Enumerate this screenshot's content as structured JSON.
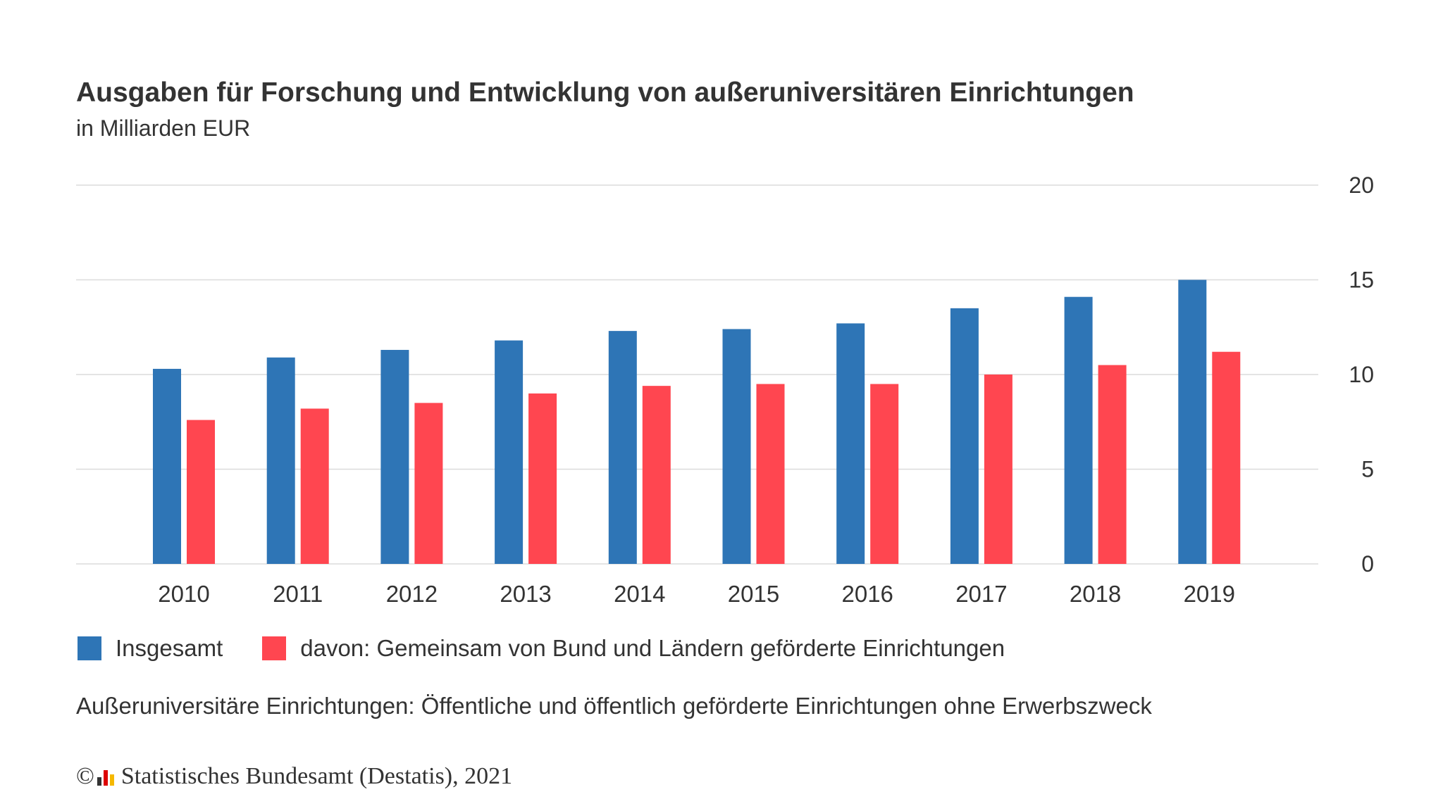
{
  "chart_data": {
    "type": "bar",
    "title": "Ausgaben für Forschung und Entwicklung von außeruniversitären Einrichtungen",
    "subtitle": "in Milliarden EUR",
    "categories": [
      "2010",
      "2011",
      "2012",
      "2013",
      "2014",
      "2015",
      "2016",
      "2017",
      "2018",
      "2019"
    ],
    "series": [
      {
        "name": "Insgesamt",
        "color": "#2e75b6",
        "values": [
          10.3,
          10.9,
          11.3,
          11.8,
          12.3,
          12.4,
          12.7,
          13.5,
          14.1,
          15.0
        ]
      },
      {
        "name": "davon: Gemeinsam von Bund und Ländern geförderte Einrichtungen",
        "color": "#ff4650",
        "values": [
          7.6,
          8.2,
          8.5,
          9.0,
          9.4,
          9.5,
          9.5,
          10.0,
          10.5,
          11.2
        ]
      }
    ],
    "ylim": [
      0,
      20
    ],
    "yticks": [
      "0",
      "5",
      "10",
      "15",
      "20"
    ],
    "y_axis_side": "right",
    "grid": true,
    "legend_position": "bottom-left"
  },
  "note": "Außeruniversitäre Einrichtungen: Öffentliche und öffentlich geförderte Einrichtungen ohne Erwerbszweck",
  "footer": {
    "copyright": "©",
    "text": "Statistisches Bundesamt (Destatis), 2021"
  }
}
